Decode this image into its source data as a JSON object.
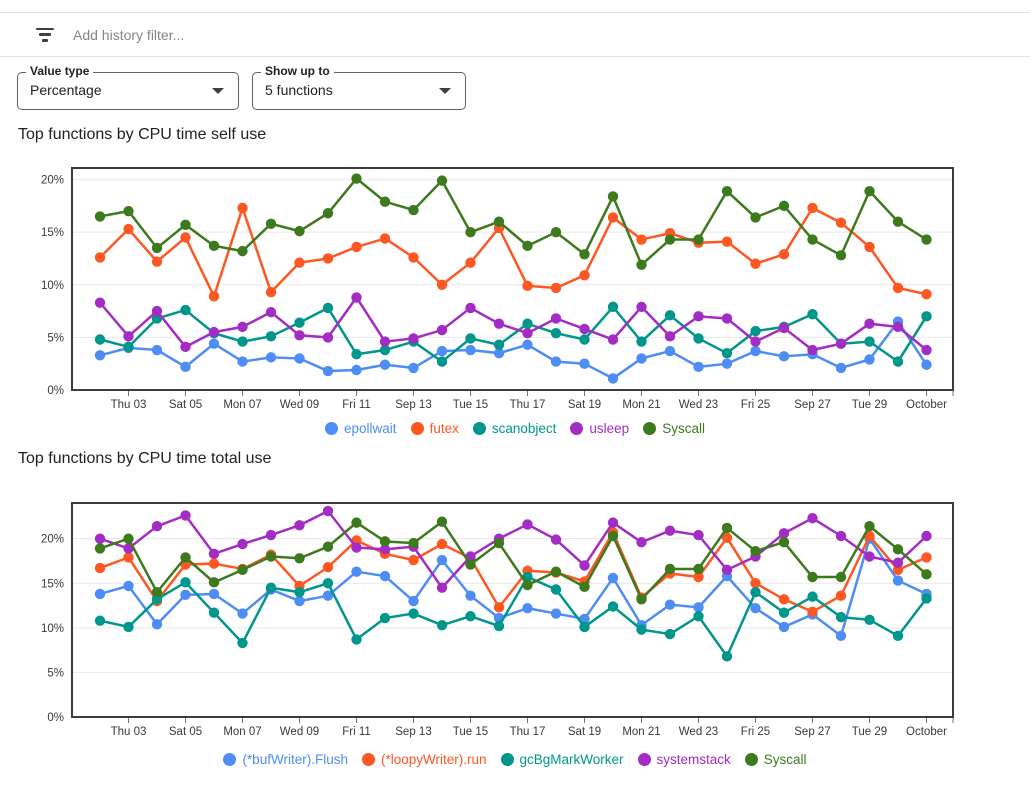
{
  "filter_bar": {
    "icon": "filter-list-icon",
    "placeholder": "Add history filter..."
  },
  "controls": {
    "value_type": {
      "label": "Value type",
      "value": "Percentage"
    },
    "show_up_to": {
      "label": "Show up to",
      "value": "5 functions"
    }
  },
  "colors": {
    "blue": "#4e8df5",
    "orange": "#ff5722",
    "teal": "#00968b",
    "purple": "#a32cc4",
    "green": "#3d7a1d"
  },
  "chart_data": [
    {
      "type": "line",
      "title": "Top functions by CPU time self use",
      "x_tick_labels": [
        "Thu 03",
        "Sat 05",
        "Mon 07",
        "Wed 09",
        "Fri 11",
        "Sep 13",
        "Tue 15",
        "Thu 17",
        "Sat 19",
        "Mon 21",
        "Wed 23",
        "Fri 25",
        "Sep 27",
        "Tue 29",
        "October"
      ],
      "x_tick_indices": [
        1,
        3,
        5,
        7,
        9,
        11,
        13,
        15,
        17,
        19,
        21,
        23,
        25,
        27,
        29
      ],
      "points_per_series": 30,
      "y_ticks": [
        [
          0,
          "0%"
        ],
        [
          5,
          "5%"
        ],
        [
          10,
          "10%"
        ],
        [
          15,
          "15%"
        ],
        [
          20,
          "20%"
        ]
      ],
      "ylim": [
        0,
        21.1
      ],
      "grid": true,
      "legend_position": "bottom",
      "series": [
        {
          "name": "epollwait",
          "color": "#4e8df5",
          "values": [
            3.3,
            4.0,
            3.8,
            2.2,
            4.4,
            2.7,
            3.1,
            3.0,
            1.8,
            1.9,
            2.4,
            2.1,
            3.7,
            3.8,
            3.5,
            4.3,
            2.7,
            2.5,
            1.1,
            3.0,
            3.7,
            2.2,
            2.5,
            3.7,
            3.2,
            3.4,
            2.1,
            2.9,
            6.5,
            2.4
          ]
        },
        {
          "name": "futex",
          "color": "#ff5722",
          "values": [
            12.6,
            15.3,
            12.2,
            14.5,
            8.9,
            17.3,
            9.3,
            12.1,
            12.5,
            13.6,
            14.4,
            12.6,
            10.0,
            12.1,
            15.4,
            9.9,
            9.7,
            10.9,
            16.4,
            14.3,
            14.9,
            14.0,
            14.1,
            12.0,
            12.9,
            17.3,
            15.9,
            13.6,
            9.7,
            9.1
          ]
        },
        {
          "name": "scanobject",
          "color": "#00968b",
          "values": [
            4.8,
            4.1,
            6.8,
            7.6,
            5.4,
            4.6,
            5.1,
            6.4,
            7.8,
            3.4,
            3.8,
            4.6,
            2.7,
            4.9,
            4.3,
            6.3,
            5.4,
            4.8,
            7.9,
            4.6,
            7.1,
            4.9,
            3.5,
            5.6,
            6.0,
            7.2,
            4.4,
            4.6,
            2.7,
            7.0
          ]
        },
        {
          "name": "usleep",
          "color": "#a32cc4",
          "values": [
            8.3,
            5.1,
            7.5,
            4.1,
            5.5,
            6.0,
            7.4,
            5.2,
            5.0,
            8.8,
            4.6,
            4.9,
            5.7,
            7.8,
            6.3,
            5.4,
            6.8,
            5.8,
            4.8,
            7.9,
            5.1,
            7.0,
            6.8,
            4.6,
            5.9,
            3.8,
            4.4,
            6.3,
            6.0,
            3.8
          ]
        },
        {
          "name": "Syscall",
          "color": "#3d7a1d",
          "values": [
            16.5,
            17.0,
            13.5,
            15.7,
            13.7,
            13.2,
            15.8,
            15.1,
            16.8,
            20.1,
            17.9,
            17.1,
            19.9,
            15.0,
            16.0,
            13.7,
            15.0,
            12.9,
            18.4,
            11.9,
            14.3,
            14.3,
            18.9,
            16.4,
            17.5,
            14.3,
            12.8,
            18.9,
            16.0,
            14.3
          ]
        }
      ]
    },
    {
      "type": "line",
      "title": "Top functions by CPU time total use",
      "x_tick_labels": [
        "Thu 03",
        "Sat 05",
        "Mon 07",
        "Wed 09",
        "Fri 11",
        "Sep 13",
        "Tue 15",
        "Thu 17",
        "Sat 19",
        "Mon 21",
        "Wed 23",
        "Fri 25",
        "Sep 27",
        "Tue 29",
        "October"
      ],
      "x_tick_indices": [
        1,
        3,
        5,
        7,
        9,
        11,
        13,
        15,
        17,
        19,
        21,
        23,
        25,
        27,
        29
      ],
      "points_per_series": 30,
      "y_ticks": [
        [
          0,
          "0%"
        ],
        [
          5,
          "5%"
        ],
        [
          10,
          "10%"
        ],
        [
          15,
          "15%"
        ],
        [
          20,
          "20%"
        ]
      ],
      "ylim": [
        0,
        24
      ],
      "grid": true,
      "legend_position": "bottom",
      "series": [
        {
          "name": "(*bufWriter).Flush",
          "color": "#4e8df5",
          "values": [
            13.8,
            14.7,
            10.4,
            13.7,
            13.8,
            11.6,
            14.3,
            13.0,
            13.6,
            16.3,
            15.8,
            13.0,
            17.6,
            13.6,
            11.1,
            12.2,
            11.6,
            11.0,
            15.6,
            10.3,
            12.6,
            12.3,
            15.8,
            12.2,
            10.1,
            11.5,
            9.1,
            20.0,
            15.3,
            13.8
          ]
        },
        {
          "name": "(*loopyWriter).run",
          "color": "#ff5722",
          "values": [
            16.7,
            17.9,
            13.0,
            17.1,
            17.2,
            16.6,
            18.2,
            14.7,
            16.8,
            19.8,
            18.3,
            17.6,
            19.4,
            17.8,
            12.3,
            16.4,
            16.2,
            15.2,
            20.7,
            13.4,
            16.1,
            15.7,
            20.1,
            15.0,
            13.2,
            11.8,
            13.6,
            20.3,
            16.5,
            17.9
          ]
        },
        {
          "name": "gcBgMarkWorker",
          "color": "#00968b",
          "values": [
            10.8,
            10.1,
            13.2,
            15.1,
            11.7,
            8.3,
            14.5,
            14.0,
            15.0,
            8.7,
            11.1,
            11.6,
            10.3,
            11.3,
            10.2,
            15.7,
            14.3,
            10.1,
            12.4,
            9.8,
            9.3,
            11.3,
            6.8,
            14.0,
            11.7,
            13.5,
            11.2,
            10.9,
            9.1,
            13.3
          ]
        },
        {
          "name": "systemstack",
          "color": "#a32cc4",
          "values": [
            20.0,
            18.9,
            21.4,
            22.6,
            18.3,
            19.4,
            20.4,
            21.5,
            23.1,
            19.0,
            18.8,
            19.1,
            14.5,
            18.0,
            20.0,
            21.6,
            19.9,
            17.0,
            21.8,
            19.6,
            20.9,
            20.4,
            16.5,
            18.0,
            20.6,
            22.3,
            20.3,
            18.0,
            17.3,
            20.3
          ]
        },
        {
          "name": "Syscall",
          "color": "#3d7a1d",
          "values": [
            18.9,
            20.0,
            14.0,
            17.9,
            15.1,
            16.5,
            18.0,
            17.8,
            19.1,
            21.8,
            19.7,
            19.5,
            21.9,
            17.1,
            19.5,
            14.8,
            16.3,
            14.6,
            20.3,
            13.2,
            16.6,
            16.6,
            21.2,
            18.6,
            19.6,
            15.7,
            15.7,
            21.4,
            18.8,
            16.0
          ]
        }
      ]
    }
  ]
}
